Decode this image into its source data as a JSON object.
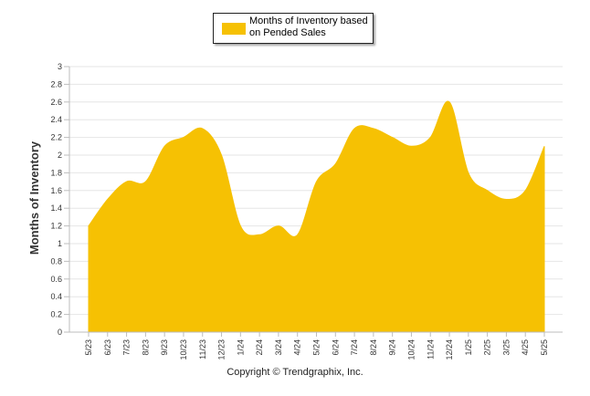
{
  "chart_data": {
    "type": "area",
    "series": [
      {
        "name": "Months of Inventory based on Pended Sales",
        "color": "#f6c103",
        "values": [
          1.2,
          1.5,
          1.7,
          1.7,
          2.1,
          2.2,
          2.3,
          2.0,
          1.2,
          1.1,
          1.2,
          1.1,
          1.7,
          1.9,
          2.3,
          2.3,
          2.2,
          2.1,
          2.2,
          2.6,
          1.8,
          1.6,
          1.5,
          1.6,
          2.1
        ]
      }
    ],
    "categories": [
      "5/23",
      "6/23",
      "7/23",
      "8/23",
      "9/23",
      "10/23",
      "11/23",
      "12/23",
      "1/24",
      "2/24",
      "3/24",
      "4/24",
      "5/24",
      "6/24",
      "7/24",
      "8/24",
      "9/24",
      "10/24",
      "11/24",
      "12/24",
      "1/25",
      "2/25",
      "3/25",
      "4/25",
      "5/25"
    ],
    "ylabel": "Months of Inventory",
    "xlabel": "",
    "ylim": [
      0,
      3
    ],
    "yticks": [
      "0",
      "0.2",
      "0.4",
      "0.6",
      "0.8",
      "1",
      "1.2",
      "1.4",
      "1.6",
      "1.8",
      "2",
      "2.2",
      "2.4",
      "2.6",
      "2.8",
      "3"
    ],
    "grid": true,
    "legend_position": "top-center"
  },
  "legend": {
    "label_line1": "Months of Inventory based",
    "label_line2": "on Pended Sales"
  },
  "footer": {
    "copyright": "Copyright © Trendgraphix, Inc."
  },
  "colors": {
    "area": "#f6c103",
    "grid": "#e6e6e6",
    "axis": "#bdbdbd",
    "text": "#333333"
  }
}
